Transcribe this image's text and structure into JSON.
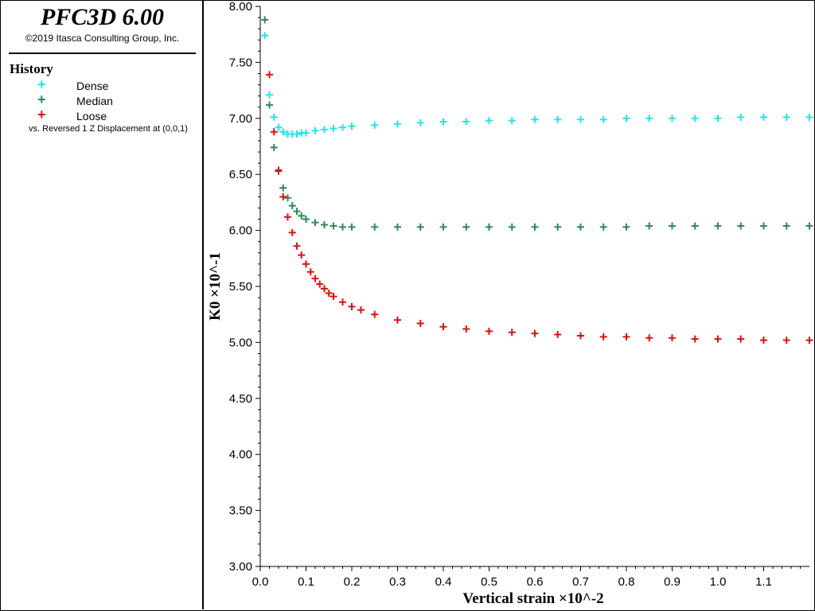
{
  "header": {
    "title": "PFC3D 6.00",
    "copyright": "©2019 Itasca Consulting Group, Inc."
  },
  "legend": {
    "title": "History",
    "items": [
      {
        "label": "Dense",
        "color": "#22e6e6"
      },
      {
        "label": "Median",
        "color": "#2e8b57"
      },
      {
        "label": "Loose",
        "color": "#e01010"
      }
    ],
    "note": "vs. Reversed 1 Z Displacement at (0,0,1)"
  },
  "chart_data": {
    "type": "scatter",
    "xlabel": "Vertical strain ×10^-2",
    "ylabel": "K0 ×10^-1",
    "xlim": [
      0,
      1.2
    ],
    "ylim": [
      3.0,
      8.0
    ],
    "x_ticks": [
      "0.0",
      "0.1",
      "0.2",
      "0.3",
      "0.4",
      "0.5",
      "0.6",
      "0.7",
      "0.8",
      "0.9",
      "1.0",
      "1.1"
    ],
    "y_ticks": [
      "3.00",
      "3.50",
      "4.00",
      "4.50",
      "5.00",
      "5.50",
      "6.00",
      "6.50",
      "7.00",
      "7.50",
      "8.00"
    ],
    "grid": false,
    "marker": "+",
    "series": [
      {
        "name": "Dense",
        "color": "#22e6e6",
        "x": [
          0.01,
          0.02,
          0.03,
          0.04,
          0.05,
          0.06,
          0.07,
          0.08,
          0.09,
          0.1,
          0.12,
          0.14,
          0.16,
          0.18,
          0.2,
          0.25,
          0.3,
          0.35,
          0.4,
          0.45,
          0.5,
          0.55,
          0.6,
          0.65,
          0.7,
          0.75,
          0.8,
          0.85,
          0.9,
          0.95,
          1.0,
          1.05,
          1.1,
          1.15,
          1.2
        ],
        "y": [
          7.74,
          7.21,
          7.01,
          6.92,
          6.88,
          6.86,
          6.86,
          6.86,
          6.87,
          6.87,
          6.89,
          6.9,
          6.91,
          6.92,
          6.93,
          6.94,
          6.95,
          6.96,
          6.97,
          6.97,
          6.98,
          6.98,
          6.99,
          6.99,
          6.99,
          6.99,
          7.0,
          7.0,
          7.0,
          7.0,
          7.0,
          7.01,
          7.01,
          7.01,
          7.01
        ]
      },
      {
        "name": "Median",
        "color": "#2e8b57",
        "x": [
          0.01,
          0.02,
          0.03,
          0.04,
          0.05,
          0.06,
          0.07,
          0.08,
          0.09,
          0.1,
          0.12,
          0.14,
          0.16,
          0.18,
          0.2,
          0.25,
          0.3,
          0.35,
          0.4,
          0.45,
          0.5,
          0.55,
          0.6,
          0.65,
          0.7,
          0.75,
          0.8,
          0.85,
          0.9,
          0.95,
          1.0,
          1.05,
          1.1,
          1.15,
          1.2
        ],
        "y": [
          7.88,
          7.12,
          6.74,
          6.54,
          6.38,
          6.29,
          6.22,
          6.17,
          6.13,
          6.1,
          6.07,
          6.05,
          6.04,
          6.03,
          6.03,
          6.03,
          6.03,
          6.03,
          6.03,
          6.03,
          6.03,
          6.03,
          6.03,
          6.03,
          6.03,
          6.03,
          6.03,
          6.04,
          6.04,
          6.04,
          6.04,
          6.04,
          6.04,
          6.04,
          6.04
        ]
      },
      {
        "name": "Loose",
        "color": "#e01010",
        "x": [
          0.02,
          0.03,
          0.04,
          0.05,
          0.06,
          0.07,
          0.08,
          0.09,
          0.1,
          0.11,
          0.12,
          0.13,
          0.14,
          0.15,
          0.16,
          0.18,
          0.2,
          0.22,
          0.25,
          0.3,
          0.35,
          0.4,
          0.45,
          0.5,
          0.55,
          0.6,
          0.65,
          0.7,
          0.75,
          0.8,
          0.85,
          0.9,
          0.95,
          1.0,
          1.05,
          1.1,
          1.15,
          1.2
        ],
        "y": [
          7.39,
          6.88,
          6.53,
          6.3,
          6.12,
          5.98,
          5.86,
          5.78,
          5.7,
          5.63,
          5.57,
          5.52,
          5.48,
          5.44,
          5.41,
          5.36,
          5.32,
          5.29,
          5.25,
          5.2,
          5.17,
          5.14,
          5.12,
          5.1,
          5.09,
          5.08,
          5.07,
          5.06,
          5.05,
          5.05,
          5.04,
          5.04,
          5.03,
          5.03,
          5.03,
          5.02,
          5.02,
          5.02
        ]
      }
    ]
  }
}
